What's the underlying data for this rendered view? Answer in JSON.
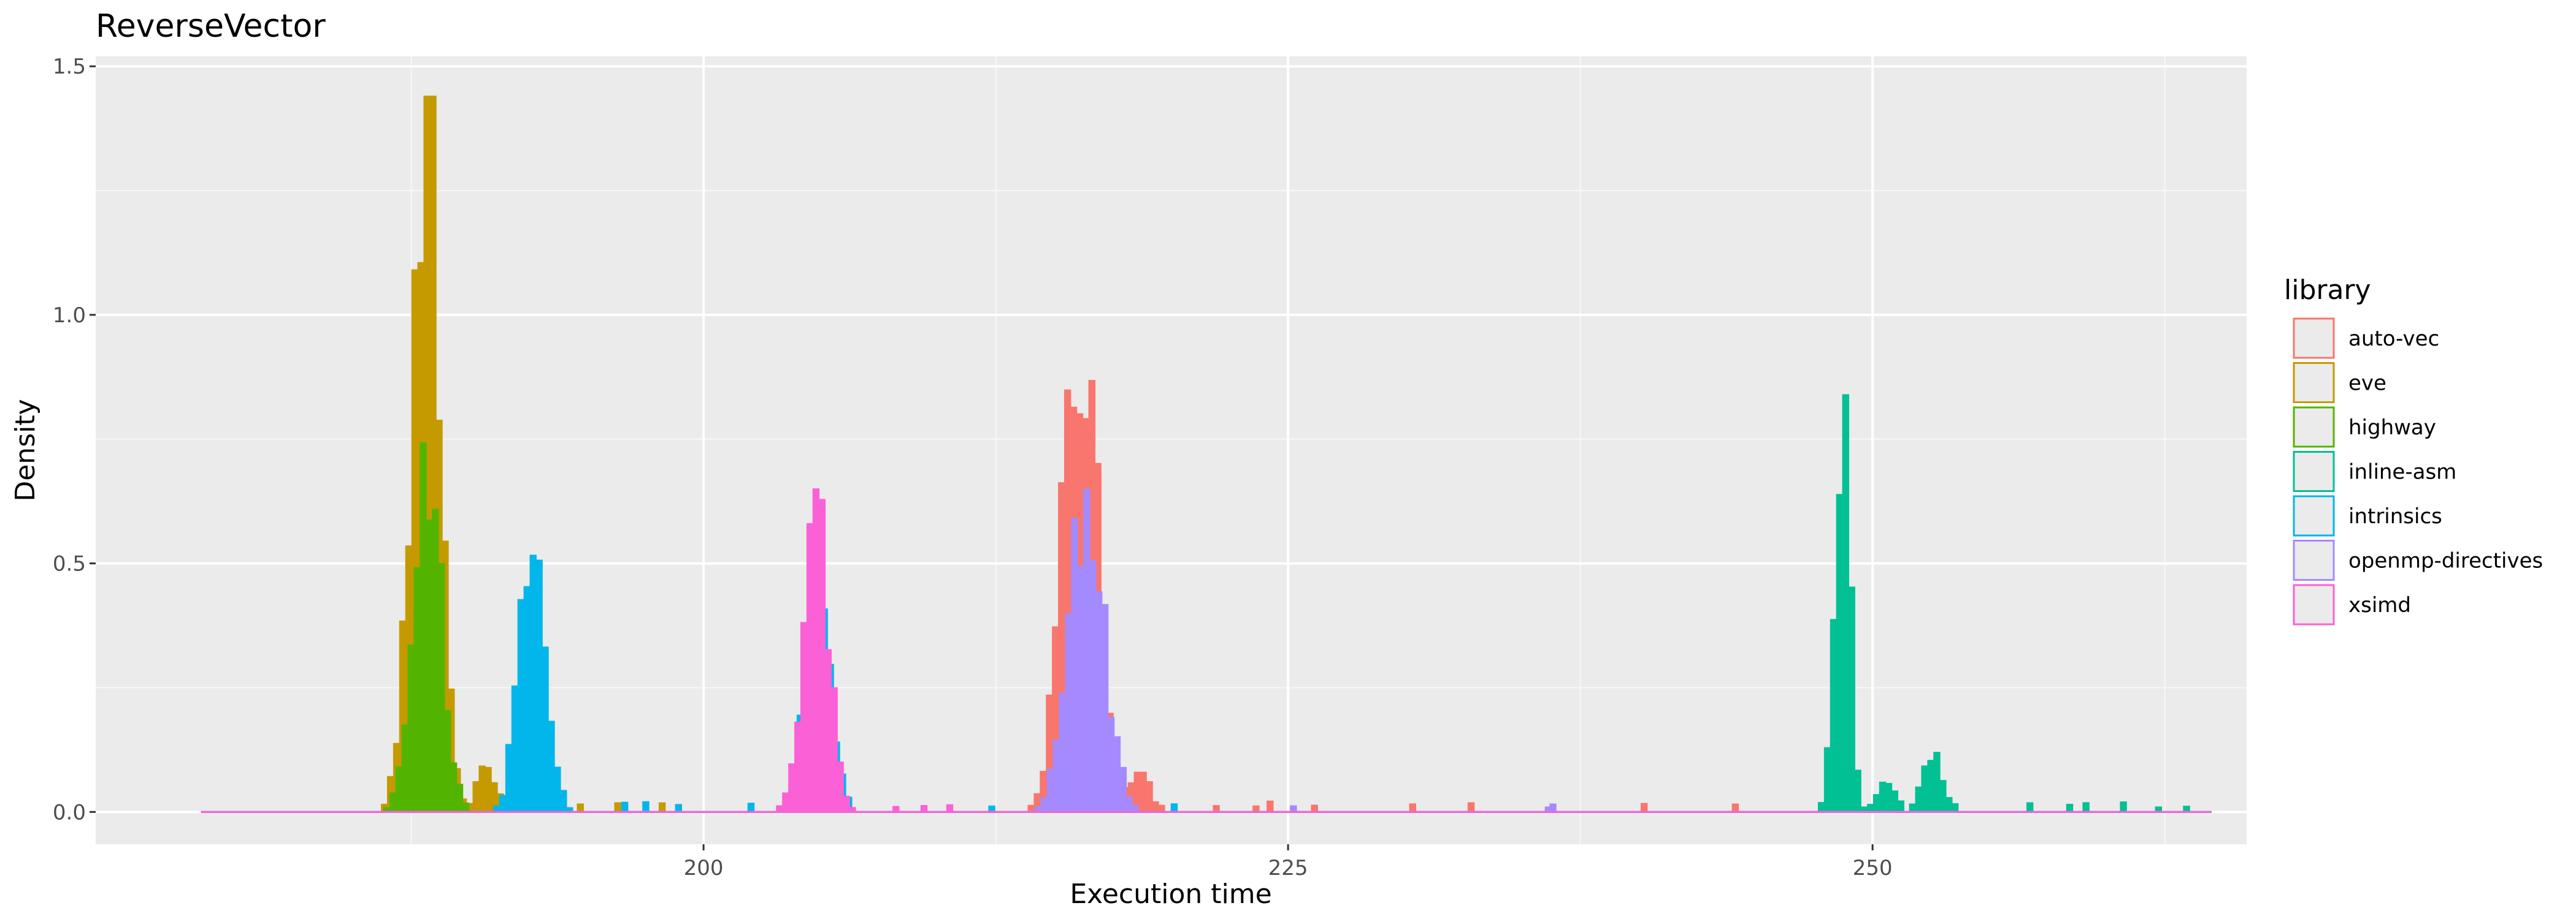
{
  "chart_data": {
    "type": "histogram",
    "title": "ReverseVector",
    "xlabel": "Execution time",
    "ylabel": "Density",
    "xlim": [
      174,
      266
    ],
    "ylim": [
      -0.065,
      1.52
    ],
    "x_ticks": [
      200,
      225,
      250
    ],
    "y_ticks": [
      0.0,
      0.5,
      1.0,
      1.5
    ],
    "y_tick_labels": [
      "0.0",
      "0.5",
      "1.0",
      "1.5"
    ],
    "grid": true,
    "legend": {
      "title": "library",
      "placement": "right"
    },
    "bin_width": 0.26,
    "x_range": [
      178.5,
      264.5
    ],
    "series": [
      {
        "name": "auto-vec",
        "color": "#F8766D",
        "peaks": [
          {
            "center": 216.1,
            "sd": 0.75,
            "height": 0.98
          },
          {
            "center": 218.6,
            "sd": 0.5,
            "height": 0.08
          }
        ],
        "sparse": [
          221.8,
          223.5,
          224.1,
          226.0,
          230.2,
          232.7,
          240.1,
          244.0
        ]
      },
      {
        "name": "eve",
        "color": "#C49A00",
        "peaks": [
          {
            "center": 188.1,
            "sd": 0.6,
            "height": 1.44
          },
          {
            "center": 190.7,
            "sd": 0.4,
            "height": 0.1
          }
        ],
        "sparse": [
          194.6,
          196.2,
          198.1
        ]
      },
      {
        "name": "highway",
        "color": "#53B400",
        "peaks": [
          {
            "center": 188.2,
            "sd": 0.6,
            "height": 0.75
          }
        ],
        "sparse": [
          191.8,
          193.0
        ]
      },
      {
        "name": "inline-asm",
        "color": "#00C094",
        "peaks": [
          {
            "center": 248.7,
            "sd": 0.32,
            "height": 0.85
          },
          {
            "center": 252.6,
            "sd": 0.45,
            "height": 0.12
          },
          {
            "center": 250.6,
            "sd": 0.4,
            "height": 0.06
          }
        ],
        "sparse": [
          256.6,
          258.3,
          259.0,
          260.6,
          262.1,
          263.3
        ]
      },
      {
        "name": "intrinsics",
        "color": "#00B6EB",
        "peaks": [
          {
            "center": 192.7,
            "sd": 0.55,
            "height": 0.66
          },
          {
            "center": 204.9,
            "sd": 0.55,
            "height": 0.47
          }
        ],
        "sparse": [
          196.5,
          197.4,
          198.8,
          201.9,
          212.2,
          220.0
        ]
      },
      {
        "name": "openmp-directives",
        "color": "#A58AFF",
        "peaks": [
          {
            "center": 216.4,
            "sd": 0.75,
            "height": 0.65
          }
        ],
        "sparse": [
          225.1,
          236.0,
          236.2
        ]
      },
      {
        "name": "xsimd",
        "color": "#FB61D7",
        "peaks": [
          {
            "center": 204.8,
            "sd": 0.55,
            "height": 0.65
          }
        ],
        "sparse": [
          208.1,
          209.3,
          210.4
        ]
      }
    ]
  }
}
